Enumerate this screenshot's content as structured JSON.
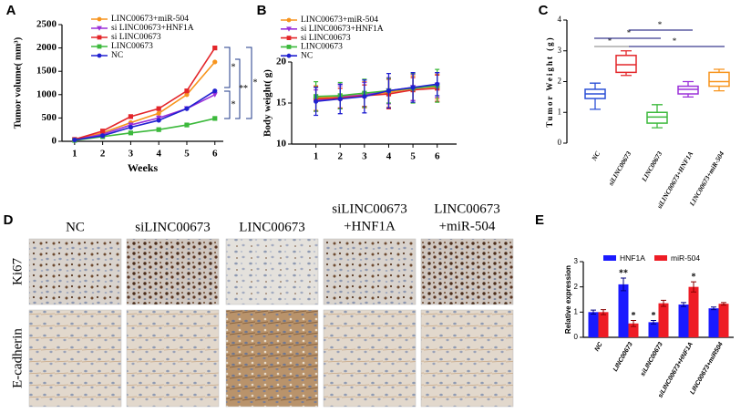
{
  "chart_data": [
    {
      "type": "line",
      "panel_label": "A",
      "x": [
        1,
        2,
        3,
        4,
        5,
        6
      ],
      "xlim": [
        0.55,
        6.3
      ],
      "xticks": [
        1,
        2,
        3,
        4,
        5,
        6
      ],
      "ylim": [
        0,
        2500
      ],
      "yticks": [
        0,
        500,
        1000,
        1500,
        2000,
        2500
      ],
      "xlabel": "Weeks",
      "ylabel": "Tumor volume( mm³)",
      "series": [
        {
          "name": "LINC00673+miR-504",
          "color": "#f7941d",
          "marker": "circle",
          "values": [
            30,
            180,
            400,
            600,
            1000,
            1700
          ]
        },
        {
          "name": "si LINC00673+HNF1A",
          "color": "#9b30d9",
          "marker": "triangle-down",
          "values": [
            30,
            150,
            350,
            500,
            700,
            1000
          ]
        },
        {
          "name": "si LINC00673",
          "color": "#e3262a",
          "marker": "square",
          "values": [
            40,
            220,
            530,
            700,
            1080,
            2000
          ]
        },
        {
          "name": "LINC00673",
          "color": "#3cb93c",
          "marker": "square",
          "values": [
            20,
            100,
            180,
            250,
            350,
            490
          ]
        },
        {
          "name": "NC",
          "color": "#2020d0",
          "marker": "circle",
          "values": [
            30,
            120,
            300,
            450,
            700,
            1080
          ]
        }
      ],
      "annotations": [
        "*",
        "*",
        "**",
        "*"
      ]
    },
    {
      "type": "line",
      "panel_label": "B",
      "x": [
        1,
        2,
        3,
        4,
        5,
        6
      ],
      "xlim": [
        0,
        6.8
      ],
      "xticks": [
        1,
        2,
        3,
        4,
        5,
        6
      ],
      "ylim": [
        10,
        20
      ],
      "yticks": [
        10,
        15,
        20
      ],
      "ylabel": "Body weight( g)",
      "series": [
        {
          "name": "LINC00673+miR-504",
          "color": "#f7941d",
          "marker": "circle",
          "values": [
            15.6,
            15.8,
            16.0,
            16.3,
            16.8,
            17.0
          ],
          "errors": [
            1.5,
            1.5,
            1.6,
            1.8,
            1.5,
            1.5
          ]
        },
        {
          "name": "si LINC00673+HNF1A",
          "color": "#9b30d9",
          "marker": "triangle-down",
          "values": [
            15.3,
            15.7,
            16.0,
            16.5,
            16.9,
            17.2
          ],
          "errors": [
            1.3,
            1.4,
            1.5,
            1.6,
            1.6,
            1.5
          ]
        },
        {
          "name": "si LINC00673",
          "color": "#e3262a",
          "marker": "square",
          "values": [
            15.5,
            15.6,
            15.9,
            16.1,
            16.6,
            16.8
          ],
          "errors": [
            1.5,
            1.2,
            1.3,
            1.8,
            1.5,
            1.6
          ]
        },
        {
          "name": "LINC00673",
          "color": "#3cb93c",
          "marker": "square",
          "values": [
            15.8,
            15.9,
            16.2,
            16.5,
            16.8,
            17.1
          ],
          "errors": [
            1.8,
            1.6,
            1.7,
            1.5,
            1.8,
            2.0
          ]
        },
        {
          "name": "NC",
          "color": "#2020d0",
          "marker": "circle",
          "values": [
            15.2,
            15.5,
            15.8,
            16.5,
            16.9,
            17.3
          ],
          "errors": [
            1.7,
            1.8,
            2.0,
            2.1,
            1.8,
            1.4
          ]
        }
      ]
    },
    {
      "type": "box",
      "panel_label": "C",
      "ylim": [
        0,
        4
      ],
      "yticks": [
        0,
        1,
        2,
        3,
        4
      ],
      "ylabel": "Tumor Weight (g)",
      "categories": [
        "NC",
        "siLINC00673",
        "LINC00673",
        "siLINC00673+HNF1A",
        "LINC00673+miR-504"
      ],
      "boxes": [
        {
          "color": "#2a4fd6",
          "min": 1.1,
          "q1": 1.45,
          "median": 1.6,
          "q3": 1.75,
          "max": 1.95
        },
        {
          "color": "#e3262a",
          "min": 2.2,
          "q1": 2.3,
          "median": 2.55,
          "q3": 2.85,
          "max": 3.0
        },
        {
          "color": "#3cb93c",
          "min": 0.5,
          "q1": 0.65,
          "median": 0.85,
          "q3": 1.0,
          "max": 1.25
        },
        {
          "color": "#9b30d9",
          "min": 1.5,
          "q1": 1.6,
          "median": 1.75,
          "q3": 1.85,
          "max": 2.0
        },
        {
          "color": "#f7941d",
          "min": 1.7,
          "q1": 1.85,
          "median": 2.0,
          "q3": 2.3,
          "max": 2.4
        }
      ],
      "annotations": [
        "*",
        "*",
        "*",
        "*"
      ]
    },
    {
      "type": "bar",
      "panel_label": "E",
      "ylim": [
        0,
        3
      ],
      "yticks": [
        0,
        1,
        2,
        3
      ],
      "ylabel": "Relative expression",
      "categories": [
        "NC",
        "LINC00673",
        "siLINC00673",
        "siLINC00673+HNF1A",
        "LINC00673+miR504"
      ],
      "series": [
        {
          "name": "HNF1A",
          "color": "#1a1aff",
          "values": [
            1.0,
            2.1,
            0.6,
            1.3,
            1.15
          ],
          "errors": [
            0.08,
            0.25,
            0.07,
            0.08,
            0.05
          ],
          "significance": [
            null,
            "**",
            "*",
            null,
            null
          ]
        },
        {
          "name": "miR-504",
          "color": "#ee1c25",
          "values": [
            1.0,
            0.55,
            1.35,
            2.0,
            1.33
          ],
          "errors": [
            0.1,
            0.12,
            0.12,
            0.2,
            0.05
          ],
          "significance": [
            null,
            "*",
            null,
            "*",
            null
          ]
        }
      ]
    }
  ],
  "ihc_panel": {
    "label": "D",
    "columns": [
      [
        "NC"
      ],
      [
        "siLINC00673"
      ],
      [
        "LINC00673"
      ],
      [
        "siLINC00673",
        "+HNF1A"
      ],
      [
        "LINC00673",
        "+miR-504"
      ]
    ],
    "rows": [
      "Ki67",
      "E-cadherin"
    ]
  }
}
